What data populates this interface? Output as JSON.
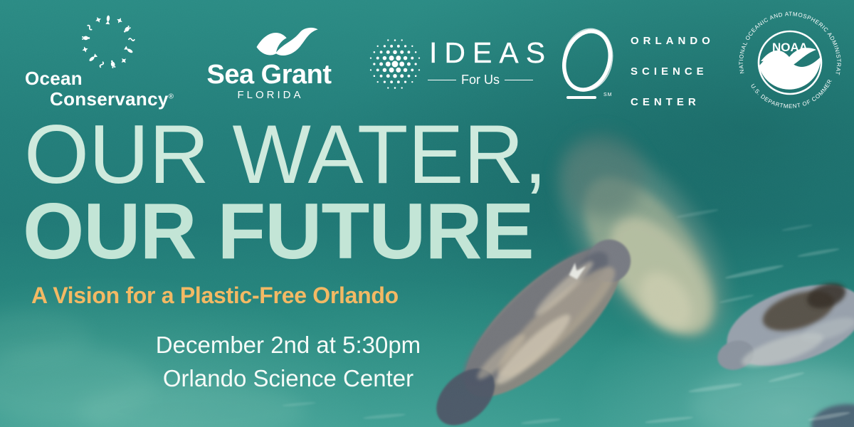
{
  "colors": {
    "water_base": "#1f7976",
    "water_light": "#35988d",
    "title_mint": "#cfeadd",
    "accent_orange": "#f3b964",
    "text_white": "#ffffff"
  },
  "logos": {
    "ocean_conservancy": {
      "word1": "Ocean",
      "word2": "Conservancy",
      "reg": "®"
    },
    "sea_grant": {
      "name": "Sea Grant",
      "region": "FLORIDA"
    },
    "ideas": {
      "name": "IDEAS",
      "tagline": "For Us"
    },
    "osc": {
      "lines": [
        "ORLANDO",
        "SCIENCE",
        "CENTER"
      ],
      "sm": "SM"
    },
    "noaa": {
      "acronym": "NOAA",
      "top_text": "NATIONAL OCEANIC AND ATMOSPHERIC ADMINISTRATION",
      "bottom_text": "U.S. DEPARTMENT OF COMMERCE"
    }
  },
  "title": {
    "line1": "OUR WATER,",
    "line2": "OUR FUTURE"
  },
  "subtitle": "A Vision for a Plastic-Free Orlando",
  "event": {
    "datetime": "December 2nd at 5:30pm",
    "location": "Orlando Science Center"
  }
}
